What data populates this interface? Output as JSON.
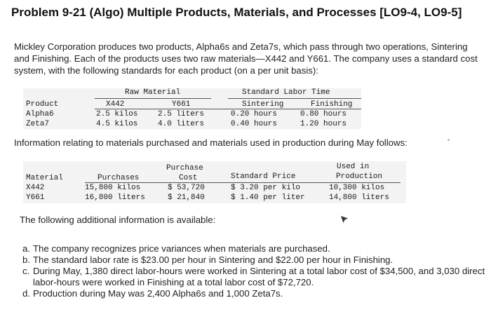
{
  "title": "Problem 9-21 (Algo) Multiple Products, Materials, and Processes [LO9-4, LO9-5]",
  "intro": "Mickley Corporation produces two products, Alpha6s and Zeta7s, which pass through two operations, Sintering and Finishing. Each of the products uses two raw materials—X442 and Y661. The company uses a standard cost system, with the following standards for each product (on a per unit basis):",
  "standards_table": {
    "group_raw": "Raw Material",
    "group_labor": "Standard Labor Time",
    "headers": [
      "Product",
      "X442",
      "Y661",
      "Sintering",
      "Finishing"
    ],
    "rows": [
      [
        "Alpha6",
        "2.5 kilos",
        "2.5 liters",
        "0.20 hours",
        "0.80 hours"
      ],
      [
        "Zeta7",
        "4.5 kilos",
        "4.0 liters",
        "0.40 hours",
        "1.20 hours"
      ]
    ]
  },
  "middle_text": "Information relating to materials purchased and materials used in production during May follows:",
  "purchases_table": {
    "headers": {
      "material": "Material",
      "purchases": "Purchases",
      "cost_1": "Purchase",
      "cost_2": "Cost",
      "price": "Standard Price",
      "used_1": "Used in",
      "used_2": "Production"
    },
    "rows": [
      [
        "X442",
        "15,800 kilos",
        "$ 53,720",
        "$ 3.20 per kilo",
        "10,300 kilos"
      ],
      [
        "Y661",
        "16,800 liters",
        "$ 21,840",
        "$ 1.40 per liter",
        "14,800 liters"
      ]
    ]
  },
  "additional_text": "The following additional information is available:",
  "list": [
    {
      "marker": "a.",
      "text": "The company recognizes price variances when materials are purchased."
    },
    {
      "marker": "b.",
      "text": "The standard labor rate is $23.00 per hour in Sintering and $22.00 per hour in Finishing."
    },
    {
      "marker": "c.",
      "text": "During May, 1,380 direct labor-hours were worked in Sintering at a total labor cost of $34,500, and 3,030 direct labor-hours were worked in Finishing at a total labor cost of $72,720."
    },
    {
      "marker": "d.",
      "text": "Production during May was 2,400 Alpha6s and 1,000 Zeta7s."
    }
  ]
}
